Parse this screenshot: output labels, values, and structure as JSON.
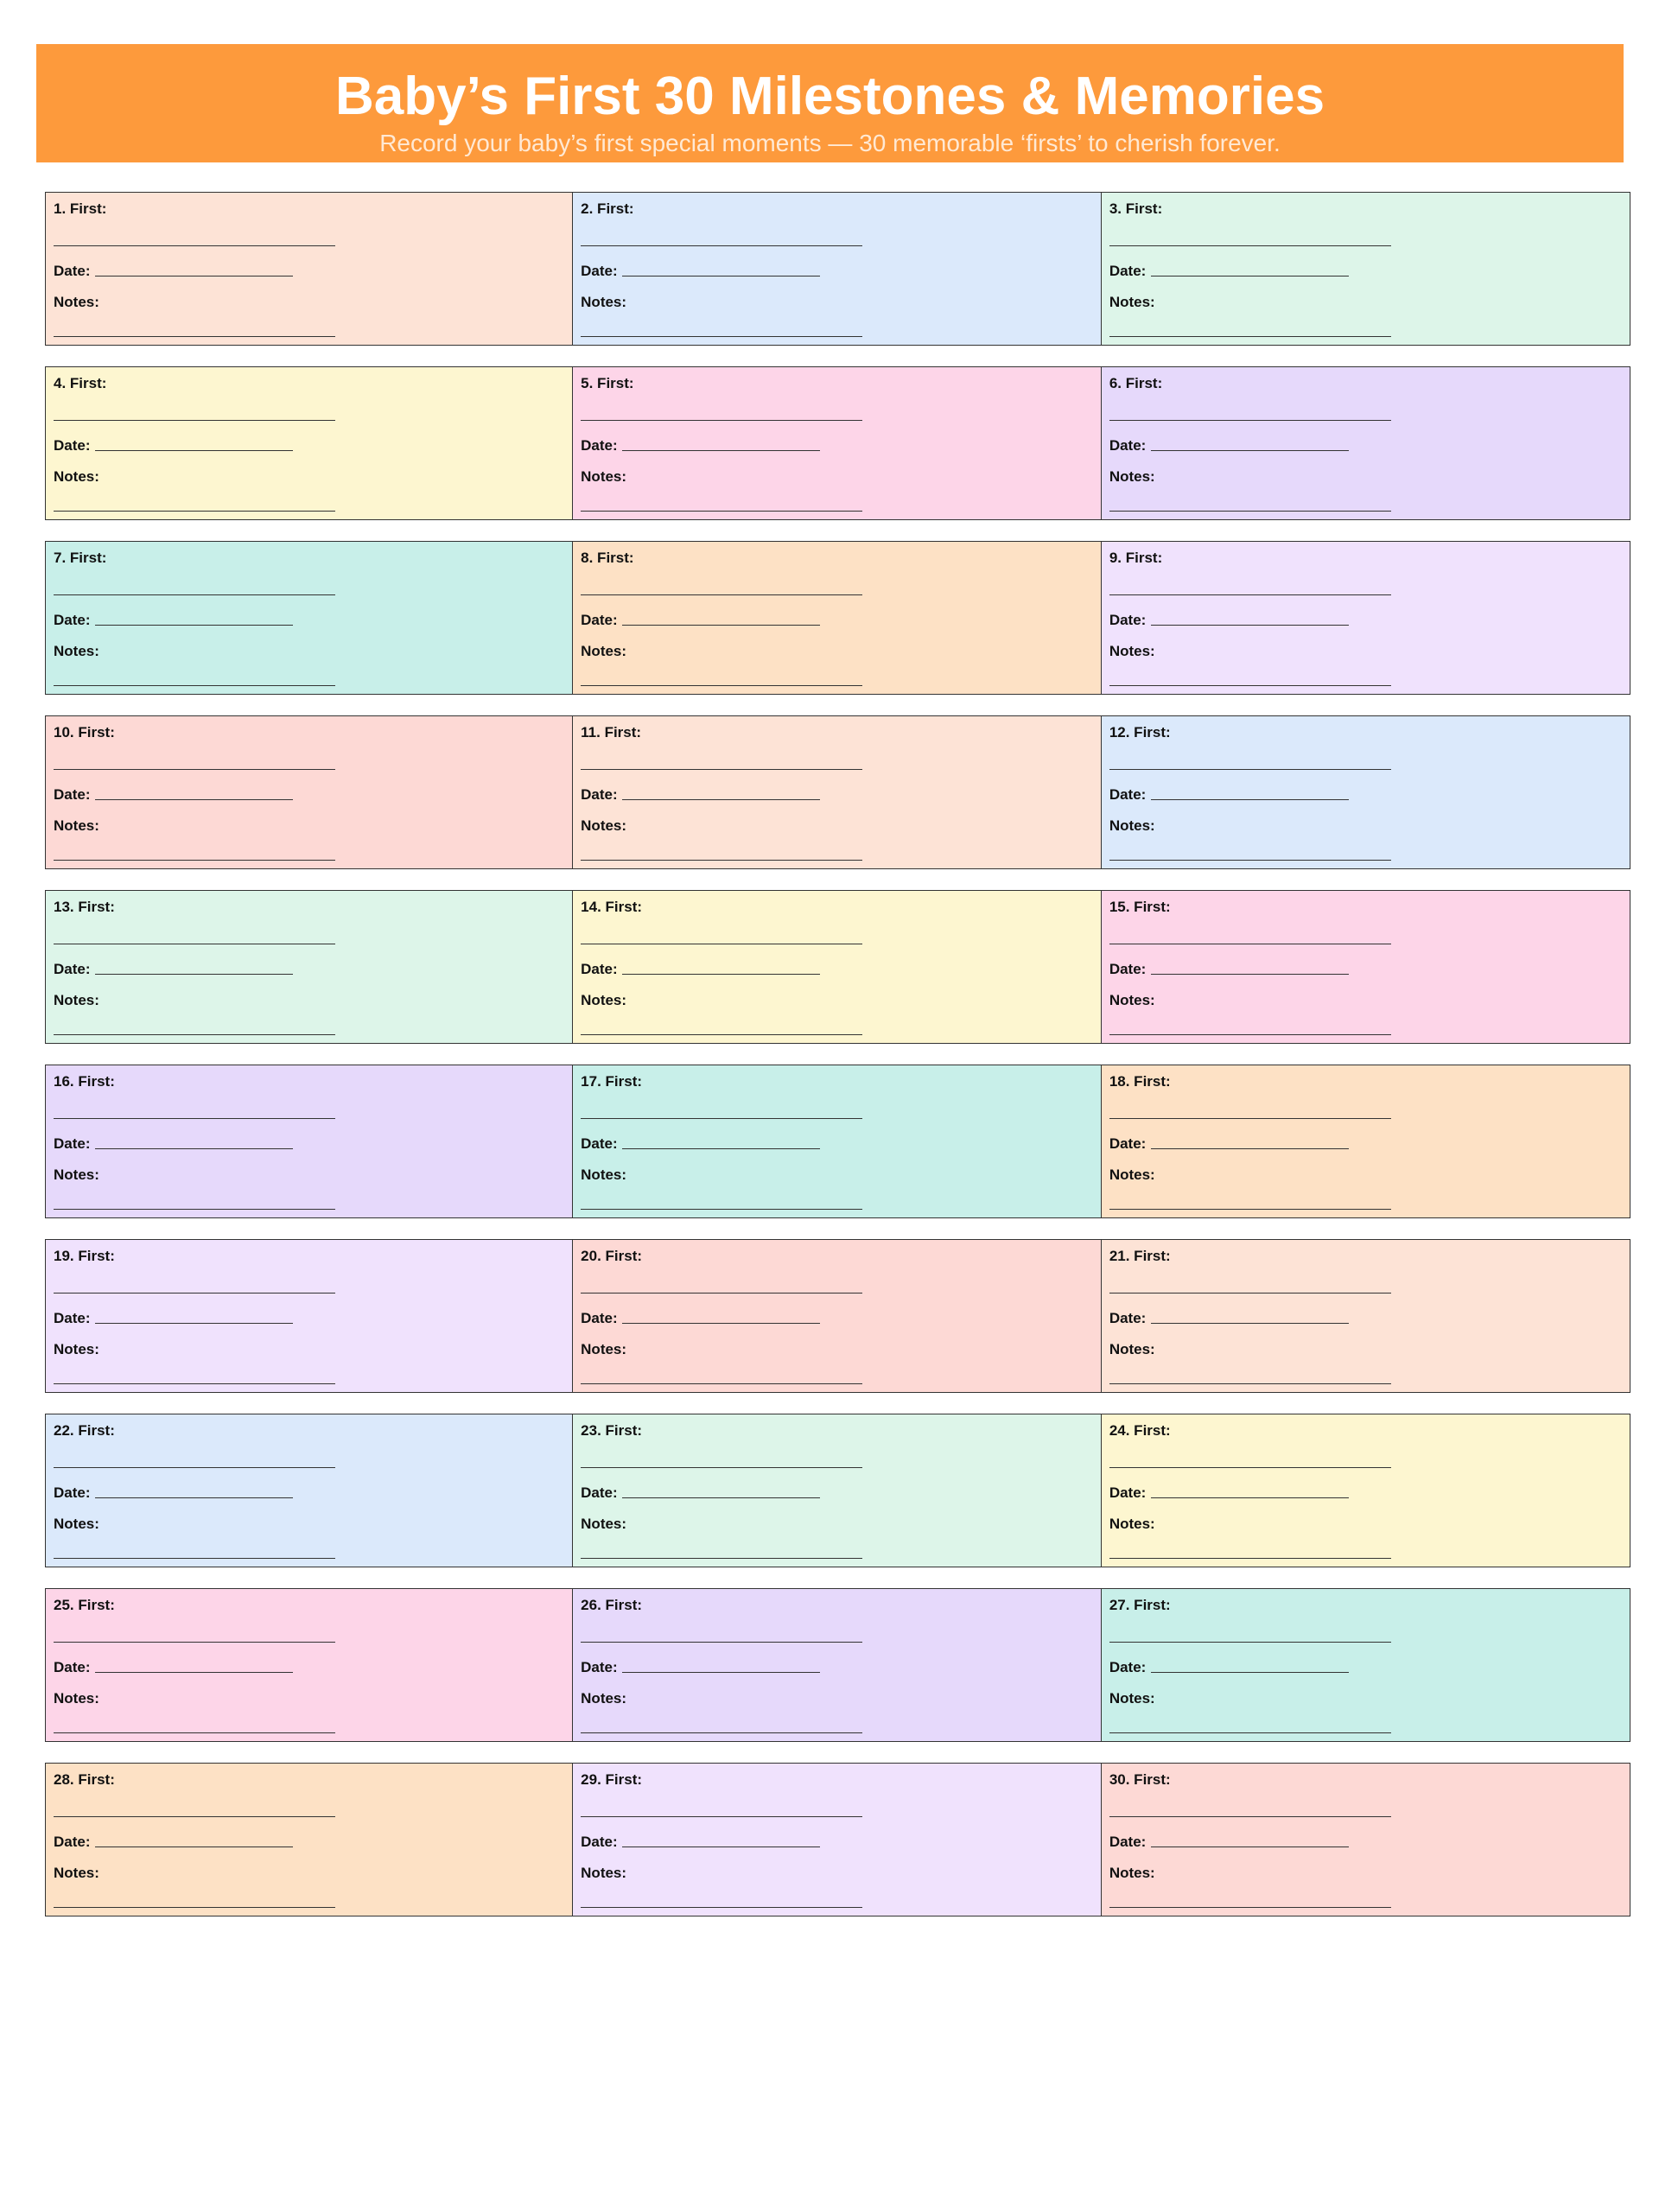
{
  "header": {
    "title": "Baby’s First 30 Milestones & Memories",
    "subtitle": "Record your baby’s first special moments — 30 memorable ‘firsts’ to cherish forever."
  },
  "milestones": [
    {
      "label": "1. First:",
      "date_label": "Date:",
      "notes_label": "Notes:"
    },
    {
      "label": "2. First:",
      "date_label": "Date:",
      "notes_label": "Notes:"
    },
    {
      "label": "3. First:",
      "date_label": "Date:",
      "notes_label": "Notes:"
    },
    {
      "label": "4. First:",
      "date_label": "Date:",
      "notes_label": "Notes:"
    },
    {
      "label": "5. First:",
      "date_label": "Date:",
      "notes_label": "Notes:"
    },
    {
      "label": "6. First:",
      "date_label": "Date:",
      "notes_label": "Notes:"
    },
    {
      "label": "7. First:",
      "date_label": "Date:",
      "notes_label": "Notes:"
    },
    {
      "label": "8. First:",
      "date_label": "Date:",
      "notes_label": "Notes:"
    },
    {
      "label": "9. First:",
      "date_label": "Date:",
      "notes_label": "Notes:"
    },
    {
      "label": "10. First:",
      "date_label": "Date:",
      "notes_label": "Notes:"
    },
    {
      "label": "11. First:",
      "date_label": "Date:",
      "notes_label": "Notes:"
    },
    {
      "label": "12. First:",
      "date_label": "Date:",
      "notes_label": "Notes:"
    },
    {
      "label": "13. First:",
      "date_label": "Date:",
      "notes_label": "Notes:"
    },
    {
      "label": "14. First:",
      "date_label": "Date:",
      "notes_label": "Notes:"
    },
    {
      "label": "15. First:",
      "date_label": "Date:",
      "notes_label": "Notes:"
    },
    {
      "label": "16. First:",
      "date_label": "Date:",
      "notes_label": "Notes:"
    },
    {
      "label": "17. First:",
      "date_label": "Date:",
      "notes_label": "Notes:"
    },
    {
      "label": "18. First:",
      "date_label": "Date:",
      "notes_label": "Notes:"
    },
    {
      "label": "19. First:",
      "date_label": "Date:",
      "notes_label": "Notes:"
    },
    {
      "label": "20. First:",
      "date_label": "Date:",
      "notes_label": "Notes:"
    },
    {
      "label": "21. First:",
      "date_label": "Date:",
      "notes_label": "Notes:"
    },
    {
      "label": "22. First:",
      "date_label": "Date:",
      "notes_label": "Notes:"
    },
    {
      "label": "23. First:",
      "date_label": "Date:",
      "notes_label": "Notes:"
    },
    {
      "label": "24. First:",
      "date_label": "Date:",
      "notes_label": "Notes:"
    },
    {
      "label": "25. First:",
      "date_label": "Date:",
      "notes_label": "Notes:"
    },
    {
      "label": "26. First:",
      "date_label": "Date:",
      "notes_label": "Notes:"
    },
    {
      "label": "27. First:",
      "date_label": "Date:",
      "notes_label": "Notes:"
    },
    {
      "label": "28. First:",
      "date_label": "Date:",
      "notes_label": "Notes:"
    },
    {
      "label": "29. First:",
      "date_label": "Date:",
      "notes_label": "Notes:"
    },
    {
      "label": "30. First:",
      "date_label": "Date:",
      "notes_label": "Notes:"
    }
  ]
}
